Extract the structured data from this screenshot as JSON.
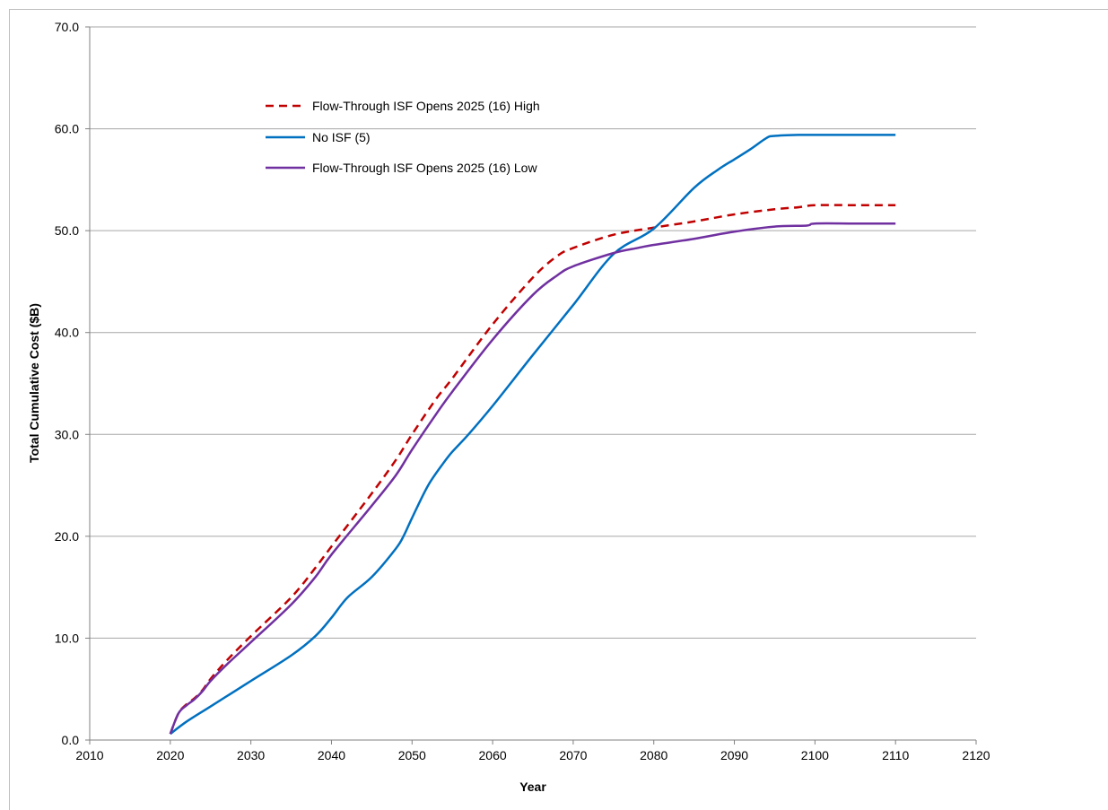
{
  "chart_data": {
    "type": "line",
    "title": "",
    "xlabel": "Year",
    "ylabel": "Total Cumulative Cost ($B)",
    "xlim": [
      2010,
      2120
    ],
    "ylim": [
      0,
      70
    ],
    "x_ticks": [
      "2010",
      "2020",
      "2030",
      "2040",
      "2050",
      "2060",
      "2070",
      "2080",
      "2090",
      "2100",
      "2110",
      "2120"
    ],
    "y_ticks": [
      "0.0",
      "10.0",
      "20.0",
      "30.0",
      "40.0",
      "50.0",
      "60.0",
      "70.0"
    ],
    "grid": "horizontal",
    "legend_position": "top-left",
    "series": [
      {
        "name": "Flow-Through ISF Opens 2025 (16) High",
        "color": "#c00000",
        "dash": "dashed",
        "x": [
          2020,
          2021,
          2022,
          2023,
          2024,
          2025,
          2027,
          2030,
          2035,
          2038,
          2040,
          2045,
          2048,
          2050,
          2053,
          2055,
          2060,
          2065,
          2068,
          2070,
          2075,
          2080,
          2085,
          2090,
          2095,
          2098,
          2100,
          2105,
          2110
        ],
        "y": [
          0.6,
          2.6,
          3.5,
          4.1,
          4.9,
          6.0,
          7.8,
          10.2,
          14.0,
          16.9,
          19.0,
          24.2,
          27.5,
          30.0,
          33.5,
          35.5,
          40.8,
          45.4,
          47.5,
          48.3,
          49.6,
          50.3,
          50.9,
          51.6,
          52.1,
          52.3,
          52.5,
          52.5,
          52.5
        ]
      },
      {
        "name": "No ISF (5)",
        "color": "#0070c0",
        "dash": "solid",
        "x": [
          2020,
          2022,
          2025,
          2030,
          2035,
          2038,
          2040,
          2042,
          2045,
          2048,
          2049,
          2050,
          2052,
          2054,
          2055,
          2057,
          2060,
          2065,
          2070,
          2075,
          2080,
          2085,
          2088,
          2090,
          2092,
          2094,
          2095,
          2098,
          2100,
          2105,
          2110
        ],
        "y": [
          0.6,
          1.8,
          3.3,
          5.8,
          8.3,
          10.2,
          12.0,
          14.0,
          16.0,
          18.8,
          20.1,
          21.8,
          25.0,
          27.3,
          28.3,
          30.0,
          32.8,
          37.8,
          42.7,
          47.7,
          50.2,
          54.2,
          56.0,
          57.0,
          58.0,
          59.1,
          59.3,
          59.4,
          59.4,
          59.4,
          59.4
        ]
      },
      {
        "name": "Flow-Through ISF Opens 2025 (16) Low",
        "color": "#7030a0",
        "dash": "solid",
        "x": [
          2020,
          2021,
          2022,
          2023,
          2024,
          2025,
          2027,
          2030,
          2035,
          2038,
          2040,
          2045,
          2048,
          2050,
          2053,
          2055,
          2060,
          2065,
          2068,
          2070,
          2075,
          2078,
          2080,
          2085,
          2090,
          2095,
          2099,
          2100,
          2105,
          2110
        ],
        "y": [
          0.6,
          2.6,
          3.4,
          4.0,
          4.8,
          5.8,
          7.4,
          9.6,
          13.3,
          16.0,
          18.2,
          23.0,
          26.0,
          28.5,
          32.0,
          34.2,
          39.3,
          43.7,
          45.6,
          46.5,
          47.8,
          48.3,
          48.6,
          49.2,
          49.9,
          50.4,
          50.5,
          50.7,
          50.7,
          50.7
        ]
      }
    ]
  }
}
